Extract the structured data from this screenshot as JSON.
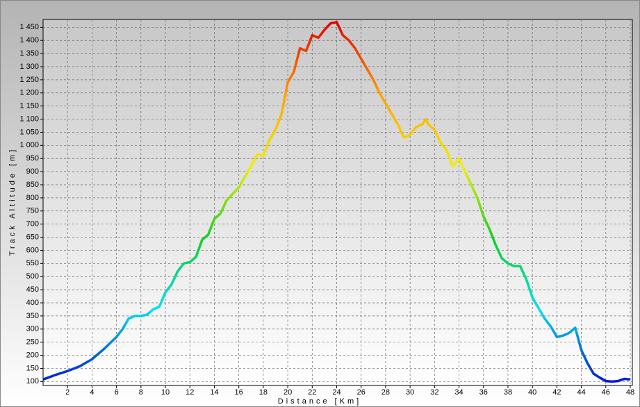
{
  "chart_data": {
    "type": "line",
    "x_label": "Distance [Km]",
    "y_label": "Track Altitude [m]",
    "x": [
      0,
      1,
      2,
      3,
      4,
      5,
      6,
      6.5,
      7,
      7.5,
      8,
      8.5,
      9,
      9.5,
      10,
      10.5,
      11,
      11.5,
      12,
      12.5,
      13,
      13.5,
      14,
      14.5,
      15,
      15.5,
      16,
      16.5,
      17,
      17.5,
      18,
      18.5,
      19,
      19.5,
      20,
      20.5,
      21,
      21.5,
      22,
      22.5,
      23,
      23.5,
      24,
      24.5,
      25,
      25.5,
      26,
      26.5,
      27,
      27.5,
      28,
      28.5,
      29,
      29.5,
      30,
      30.5,
      31,
      31.3,
      31.5,
      32,
      32.5,
      33,
      33.5,
      34,
      34.5,
      35,
      35.5,
      36,
      36.5,
      37,
      37.5,
      38,
      38.5,
      39,
      39.5,
      40,
      40.5,
      41,
      41.5,
      42,
      42.5,
      43,
      43.5,
      44,
      44.5,
      45,
      45.5,
      46,
      46.5,
      47,
      47.5,
      48
    ],
    "series": [
      {
        "name": "Track Altitude",
        "values": [
          108,
          125,
          140,
          158,
          185,
          225,
          270,
          300,
          340,
          350,
          350,
          355,
          375,
          385,
          440,
          470,
          520,
          550,
          555,
          575,
          640,
          660,
          720,
          740,
          790,
          815,
          840,
          880,
          920,
          965,
          960,
          1020,
          1060,
          1120,
          1240,
          1280,
          1370,
          1360,
          1420,
          1410,
          1440,
          1465,
          1470,
          1420,
          1400,
          1370,
          1330,
          1290,
          1250,
          1200,
          1160,
          1120,
          1080,
          1030,
          1040,
          1070,
          1080,
          1100,
          1080,
          1060,
          1010,
          980,
          920,
          950,
          900,
          850,
          800,
          730,
          680,
          620,
          570,
          550,
          540,
          540,
          490,
          420,
          380,
          340,
          310,
          270,
          275,
          285,
          305,
          220,
          170,
          130,
          115,
          102,
          100,
          102,
          110,
          108
        ]
      }
    ],
    "color_scale": [
      "#0018d8",
      "#00e0f0",
      "#10d020",
      "#f0f000",
      "#ffa000",
      "#e00000"
    ],
    "xlim": [
      0,
      48
    ],
    "ylim": [
      85,
      1480
    ],
    "xticks": [
      2,
      4,
      6,
      8,
      10,
      12,
      14,
      16,
      18,
      20,
      22,
      24,
      26,
      28,
      30,
      32,
      34,
      36,
      38,
      40,
      42,
      44,
      46,
      48
    ],
    "yticks": [
      100,
      150,
      200,
      250,
      300,
      350,
      400,
      450,
      500,
      550,
      600,
      650,
      700,
      750,
      800,
      850,
      900,
      950,
      {
        "value": 1000,
        "label": "1 000"
      },
      {
        "value": 1050,
        "label": "1 050"
      },
      {
        "value": 1100,
        "label": "1 100"
      },
      {
        "value": 1150,
        "label": "1 150"
      },
      {
        "value": 1200,
        "label": "1 200"
      },
      {
        "value": 1250,
        "label": "1 250"
      },
      {
        "value": 1300,
        "label": "1 300"
      },
      {
        "value": 1350,
        "label": "1 350"
      },
      {
        "value": 1400,
        "label": "1 400"
      },
      {
        "value": 1450,
        "label": "1 450"
      }
    ],
    "grid": true
  }
}
